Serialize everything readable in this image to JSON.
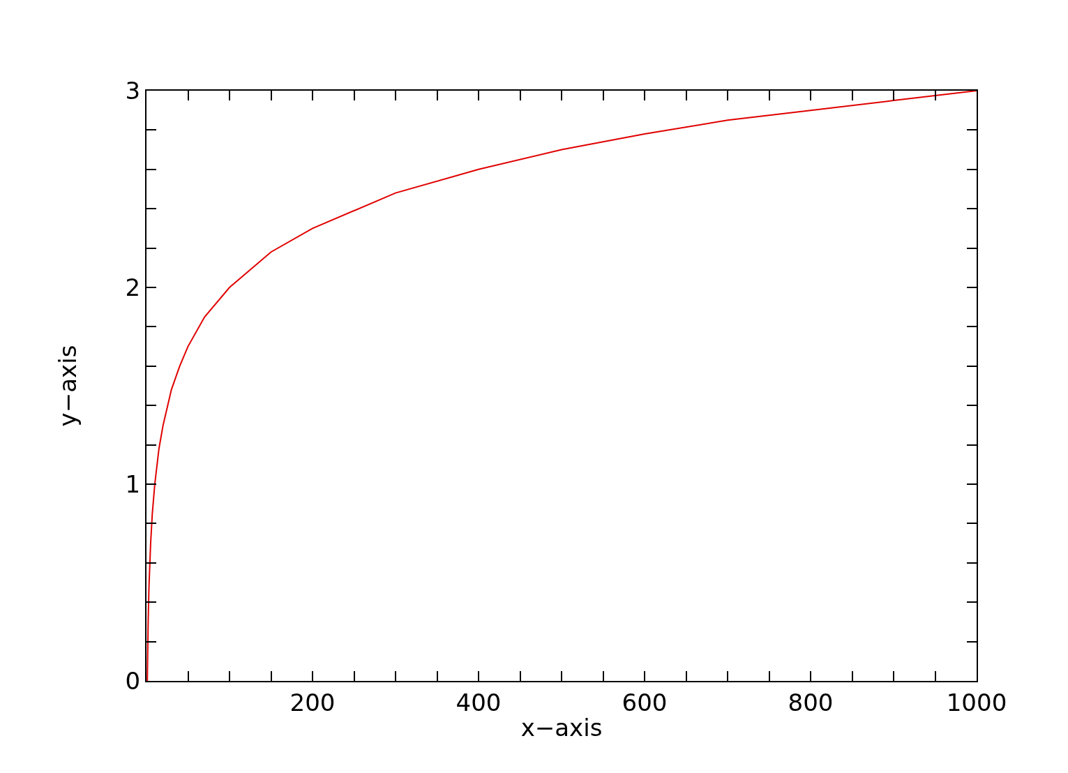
{
  "chart_data": {
    "type": "line",
    "xlabel": "x−axis",
    "ylabel": "y−axis",
    "x": [
      1,
      2,
      3,
      5,
      7,
      10,
      15,
      20,
      30,
      40,
      50,
      70,
      100,
      150,
      200,
      300,
      400,
      500,
      600,
      700,
      800,
      900,
      1000
    ],
    "series": [
      {
        "color": "#e00000",
        "values": [
          0,
          0.3,
          0.48,
          0.7,
          0.85,
          1,
          1.18,
          1.3,
          1.48,
          1.6,
          1.7,
          1.85,
          2,
          2.18,
          2.3,
          2.48,
          2.6,
          2.7,
          2.78,
          2.85,
          2.9,
          2.95,
          3
        ]
      }
    ],
    "xlim": [
      0,
      1000
    ],
    "ylim": [
      0,
      3
    ],
    "xticks": [
      {
        "value": 50,
        "label": null
      },
      {
        "value": 100,
        "label": null
      },
      {
        "value": 150,
        "label": null
      },
      200,
      {
        "value": 250,
        "label": null
      },
      {
        "value": 300,
        "label": null
      },
      {
        "value": 350,
        "label": null
      },
      400,
      {
        "value": 450,
        "label": null
      },
      {
        "value": 500,
        "label": null
      },
      {
        "value": 550,
        "label": null
      },
      600,
      {
        "value": 650,
        "label": null
      },
      {
        "value": 700,
        "label": null
      },
      {
        "value": 750,
        "label": null
      },
      800,
      {
        "value": 850,
        "label": null
      },
      {
        "value": 900,
        "label": null
      },
      {
        "value": 950,
        "label": null
      },
      1000
    ],
    "yticks": [
      0,
      {
        "value": 0.2,
        "label": null
      },
      {
        "value": 0.4,
        "label": null
      },
      {
        "value": 0.6,
        "label": null
      },
      {
        "value": 0.8,
        "label": null
      },
      1,
      {
        "value": 1.2,
        "label": null
      },
      {
        "value": 1.4,
        "label": null
      },
      {
        "value": 1.6,
        "label": null
      },
      {
        "value": 1.8,
        "label": null
      },
      2,
      {
        "value": 2.2,
        "label": null
      },
      {
        "value": 2.4,
        "label": null
      },
      {
        "value": 2.6,
        "label": null
      },
      {
        "value": 2.8,
        "label": null
      },
      3
    ],
    "line_style": "solid",
    "marker": "none"
  }
}
